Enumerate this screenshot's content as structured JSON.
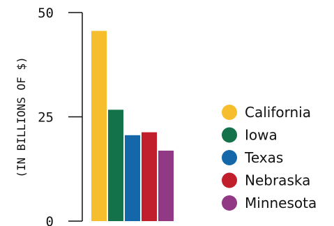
{
  "chart_data": {
    "type": "bar",
    "title": "",
    "xlabel": "",
    "ylabel": "(IN BILLIONS OF $)",
    "ylim": [
      0,
      50
    ],
    "yticks": [
      0,
      25,
      50
    ],
    "categories": [
      "California",
      "Iowa",
      "Texas",
      "Nebraska",
      "Minnesota"
    ],
    "values": [
      45.6,
      26.7,
      20.6,
      21.3,
      16.9
    ],
    "colors": [
      "#F6BE2C",
      "#13724A",
      "#1467A8",
      "#C11F2C",
      "#913985"
    ],
    "legend": {
      "position": "right",
      "marker": "circle"
    },
    "grid": false
  }
}
